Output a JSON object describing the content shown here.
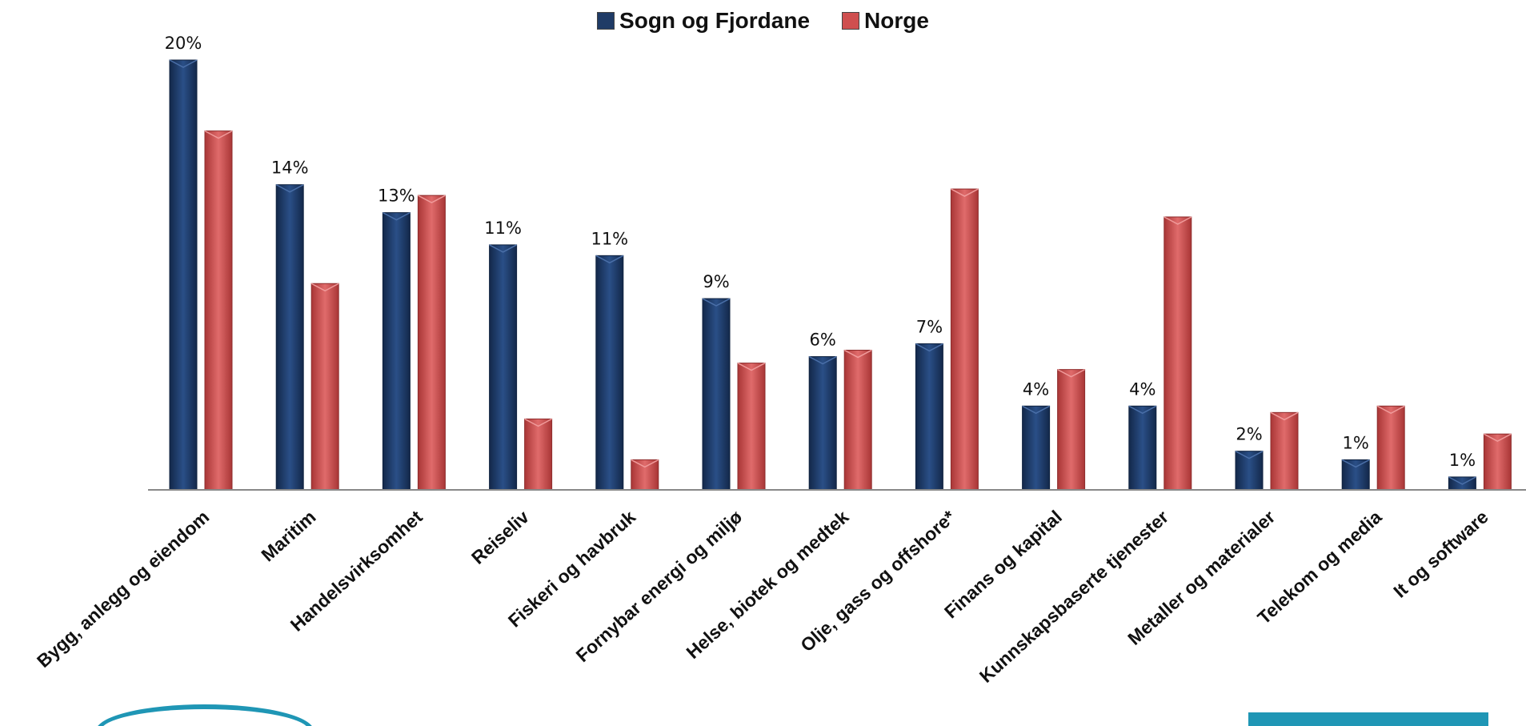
{
  "legend": {
    "series_1": "Sogn og Fjordane",
    "series_2": "Norge"
  },
  "colors": {
    "series_1": "#1f3b66",
    "series_2": "#cf4f4f",
    "axis": "#888888",
    "logo": "#1f96b5"
  },
  "chart_data": {
    "type": "bar",
    "categories": [
      "Bygg, anlegg og eiendom",
      "Maritim",
      "Handelsvirksomhet",
      "Reiseliv",
      "Fiskeri og havbruk",
      "Fornybar energi og miljø",
      "Helse, biotek og medtek",
      "Olje, gass og offshore*",
      "Finans og kapital",
      "Kunnskapsbaserte tjenester",
      "Metaller og materialer",
      "Telekom og media",
      "It og software"
    ],
    "series": [
      {
        "name": "Sogn og Fjordane",
        "values": [
          20,
          14,
          13,
          11,
          11,
          9,
          6,
          7,
          4,
          4,
          2,
          1,
          1
        ],
        "displayed_values": [
          20,
          14.2,
          12.9,
          11.4,
          10.9,
          8.9,
          6.2,
          6.8,
          3.9,
          3.9,
          1.8,
          1.4,
          0.6
        ],
        "data_labels": [
          "20%",
          "14%",
          "13%",
          "11%",
          "11%",
          "9%",
          "6%",
          "7%",
          "4%",
          "4%",
          "2%",
          "1%",
          "1%"
        ]
      },
      {
        "name": "Norge",
        "values": [
          16.7,
          9.6,
          13.7,
          3.3,
          1.4,
          5.9,
          6.5,
          14.0,
          5.6,
          12.7,
          3.6,
          3.9,
          2.6
        ]
      }
    ],
    "ylim": [
      0,
      20
    ],
    "grid": false,
    "legend_position": "top-center"
  }
}
